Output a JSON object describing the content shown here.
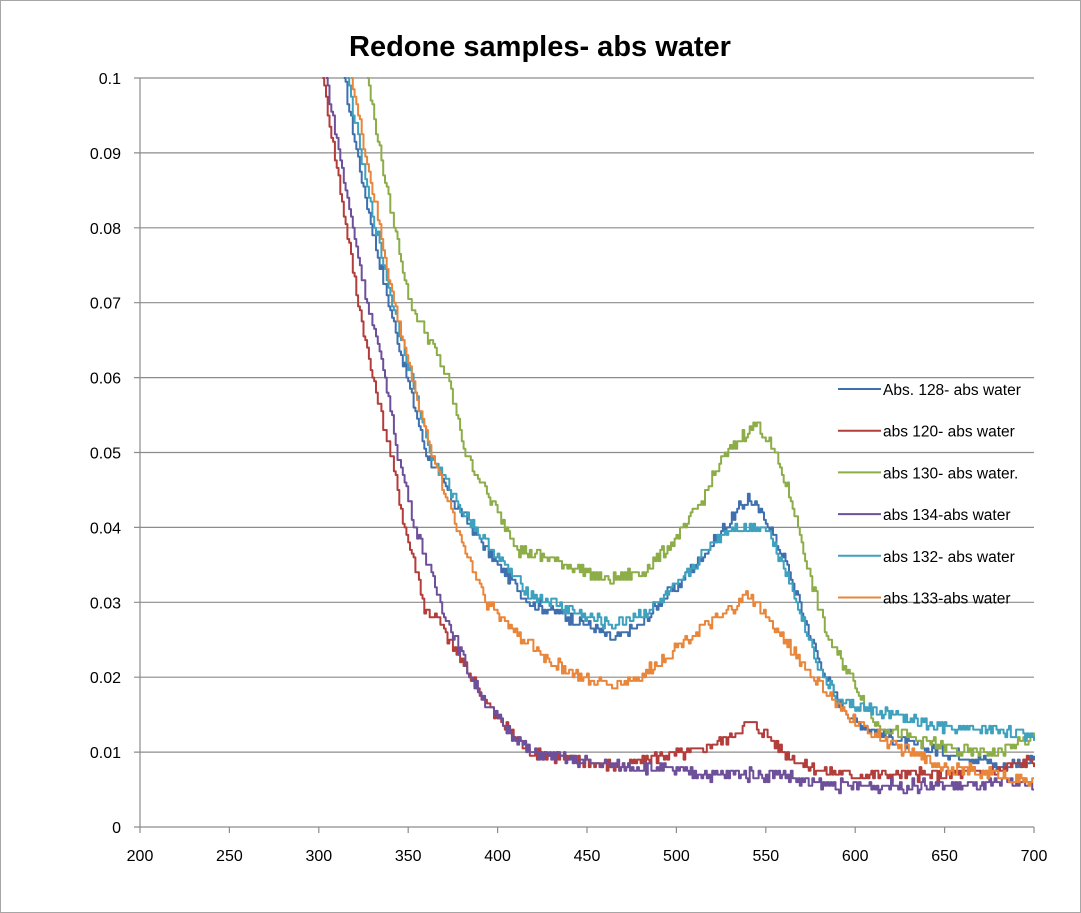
{
  "chart_data": {
    "type": "line",
    "title": "Redone samples- abs water",
    "xlabel": "",
    "ylabel": "",
    "xlim": [
      200,
      700
    ],
    "ylim": [
      0,
      0.1
    ],
    "grid": "horizontal",
    "legend_position": "right",
    "x_ticks": [
      "200",
      "250",
      "300",
      "350",
      "400",
      "450",
      "500",
      "550",
      "600",
      "650",
      "700"
    ],
    "x_tick_values": [
      200,
      250,
      300,
      350,
      400,
      450,
      500,
      550,
      600,
      650,
      700
    ],
    "y_ticks": [
      "0",
      "0.01",
      "0.02",
      "0.03",
      "0.04",
      "0.05",
      "0.06",
      "0.07",
      "0.08",
      "0.09",
      "0.1"
    ],
    "y_tick_values": [
      0,
      0.01,
      0.02,
      0.03,
      0.04,
      0.05,
      0.06,
      0.07,
      0.08,
      0.09,
      0.1
    ],
    "series": [
      {
        "name": "Abs. 128- abs water",
        "color": "#3f6fad",
        "x": [
          314,
          325,
          339,
          349,
          360,
          374,
          385,
          400,
          418,
          430,
          450,
          465,
          480,
          490,
          500,
          510,
          520,
          530,
          540,
          550,
          560,
          570,
          580,
          590,
          600,
          610,
          630,
          650,
          670,
          680,
          700
        ],
        "y": [
          0.1,
          0.085,
          0.07,
          0.06,
          0.05,
          0.044,
          0.04,
          0.035,
          0.03,
          0.029,
          0.027,
          0.025,
          0.027,
          0.03,
          0.032,
          0.035,
          0.038,
          0.041,
          0.044,
          0.041,
          0.036,
          0.029,
          0.022,
          0.017,
          0.014,
          0.013,
          0.011,
          0.01,
          0.009,
          0.008,
          0.009
        ]
      },
      {
        "name": "abs 120- abs water",
        "color": "#b33d3a",
        "x": [
          302,
          312,
          322,
          330,
          340,
          348,
          356,
          359,
          366,
          375,
          385,
          398,
          418,
          443,
          468,
          490,
          510,
          530,
          540,
          550,
          560,
          570,
          580,
          600,
          620,
          650,
          680,
          700
        ],
        "y": [
          0.1,
          0.085,
          0.07,
          0.06,
          0.05,
          0.04,
          0.033,
          0.029,
          0.028,
          0.024,
          0.02,
          0.015,
          0.01,
          0.009,
          0.008,
          0.0095,
          0.01,
          0.012,
          0.014,
          0.0125,
          0.01,
          0.0085,
          0.0075,
          0.007,
          0.007,
          0.007,
          0.0075,
          0.009
        ]
      },
      {
        "name": "abs 130- abs water.",
        "color": "#8cad48",
        "x": [
          327,
          338,
          351,
          362,
          372,
          382,
          395,
          405,
          412,
          425,
          440,
          460,
          480,
          490,
          505,
          515,
          525,
          540,
          545,
          555,
          565,
          575,
          585,
          600,
          610,
          630,
          660,
          680,
          700
        ],
        "y": [
          0.1,
          0.085,
          0.07,
          0.065,
          0.06,
          0.05,
          0.044,
          0.04,
          0.037,
          0.036,
          0.035,
          0.033,
          0.034,
          0.036,
          0.04,
          0.044,
          0.049,
          0.053,
          0.054,
          0.05,
          0.043,
          0.033,
          0.025,
          0.019,
          0.014,
          0.012,
          0.01,
          0.01,
          0.012
        ]
      },
      {
        "name": "abs 134-abs water",
        "color": "#6e4f99",
        "x": [
          304,
          315,
          327,
          337,
          344,
          354,
          368,
          378,
          385,
          398,
          418,
          443,
          468,
          480,
          500,
          520,
          540,
          560,
          570,
          590,
          610,
          640,
          670,
          690,
          700
        ],
        "y": [
          0.1,
          0.085,
          0.07,
          0.06,
          0.05,
          0.04,
          0.03,
          0.024,
          0.02,
          0.015,
          0.01,
          0.009,
          0.008,
          0.008,
          0.0075,
          0.007,
          0.007,
          0.007,
          0.006,
          0.0055,
          0.0055,
          0.0055,
          0.0055,
          0.006,
          0.0055
        ]
      },
      {
        "name": "abs 132- abs water",
        "color": "#3ea1bd",
        "x": [
          316,
          327,
          341,
          352,
          362,
          376,
          387,
          400,
          418,
          430,
          450,
          465,
          485,
          490,
          500,
          510,
          520,
          530,
          550,
          560,
          570,
          580,
          590,
          600,
          620,
          650,
          680,
          700
        ],
        "y": [
          0.1,
          0.085,
          0.07,
          0.06,
          0.05,
          0.044,
          0.04,
          0.036,
          0.031,
          0.03,
          0.028,
          0.027,
          0.029,
          0.03,
          0.032,
          0.035,
          0.038,
          0.04,
          0.04,
          0.035,
          0.028,
          0.021,
          0.017,
          0.016,
          0.015,
          0.013,
          0.013,
          0.012
        ]
      },
      {
        "name": "abs 133-abs water",
        "color": "#e8863b",
        "x": [
          318,
          330,
          342,
          352,
          363,
          377,
          394,
          410,
          430,
          450,
          465,
          480,
          495,
          510,
          525,
          540,
          550,
          560,
          570,
          580,
          590,
          600,
          620,
          650,
          680,
          700
        ],
        "y": [
          0.1,
          0.085,
          0.07,
          0.06,
          0.05,
          0.04,
          0.03,
          0.026,
          0.022,
          0.0195,
          0.019,
          0.02,
          0.023,
          0.026,
          0.028,
          0.031,
          0.028,
          0.025,
          0.022,
          0.019,
          0.016,
          0.014,
          0.011,
          0.008,
          0.007,
          0.006
        ]
      }
    ]
  }
}
